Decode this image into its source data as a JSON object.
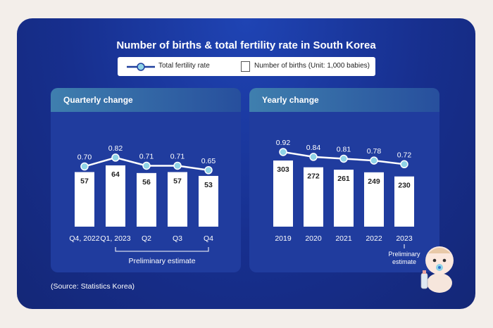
{
  "title": "Number of births & total fertility rate in South Korea",
  "legend": {
    "line_label": "Total fertility rate",
    "bar_label": "Number of births (Unit: 1,000 babies)"
  },
  "colors": {
    "background": "#142777",
    "bar": "#ffffff",
    "line": "#ffffff",
    "marker": "#8fd3e6",
    "header": "#3f7fae"
  },
  "source": "(Source: Statistics Korea)",
  "chart_data": [
    {
      "type": "bar",
      "title": "Quarterly change",
      "categories": [
        "Q4, 2022",
        "Q1, 2023",
        "Q2",
        "Q3",
        "Q4"
      ],
      "series": [
        {
          "name": "Number of births (Unit: 1,000 babies)",
          "type": "bar",
          "values": [
            57,
            64,
            56,
            57,
            53
          ]
        },
        {
          "name": "Total fertility rate",
          "type": "line",
          "values": [
            0.7,
            0.82,
            0.71,
            0.71,
            0.65
          ]
        }
      ],
      "value_labels": {
        "births": [
          "57",
          "64",
          "56",
          "57",
          "53"
        ],
        "rate": [
          "0.70",
          "0.82",
          "0.71",
          "0.71",
          "0.65"
        ]
      },
      "annotation": "Preliminary estimate",
      "annotation_span": [
        "Q1, 2023",
        "Q4"
      ],
      "bar_ylim": [
        0,
        80
      ],
      "rate_ylim": [
        0.5,
        1.0
      ]
    },
    {
      "type": "bar",
      "title": "Yearly change",
      "categories": [
        "2019",
        "2020",
        "2021",
        "2022",
        "2023"
      ],
      "series": [
        {
          "name": "Number of births (Unit: 1,000 babies)",
          "type": "bar",
          "values": [
            303,
            272,
            261,
            249,
            230
          ]
        },
        {
          "name": "Total fertility rate",
          "type": "line",
          "values": [
            0.92,
            0.84,
            0.81,
            0.78,
            0.72
          ]
        }
      ],
      "value_labels": {
        "births": [
          "303",
          "272",
          "261",
          "249",
          "230"
        ],
        "rate": [
          "0.92",
          "0.84",
          "0.81",
          "0.78",
          "0.72"
        ]
      },
      "annotation": "Preliminary estimate",
      "annotation_lines": [
        "Preliminary",
        "estimate"
      ],
      "annotation_span": [
        "2023",
        "2023"
      ],
      "bar_ylim": [
        0,
        380
      ],
      "rate_ylim": [
        0.5,
        1.1
      ]
    }
  ]
}
